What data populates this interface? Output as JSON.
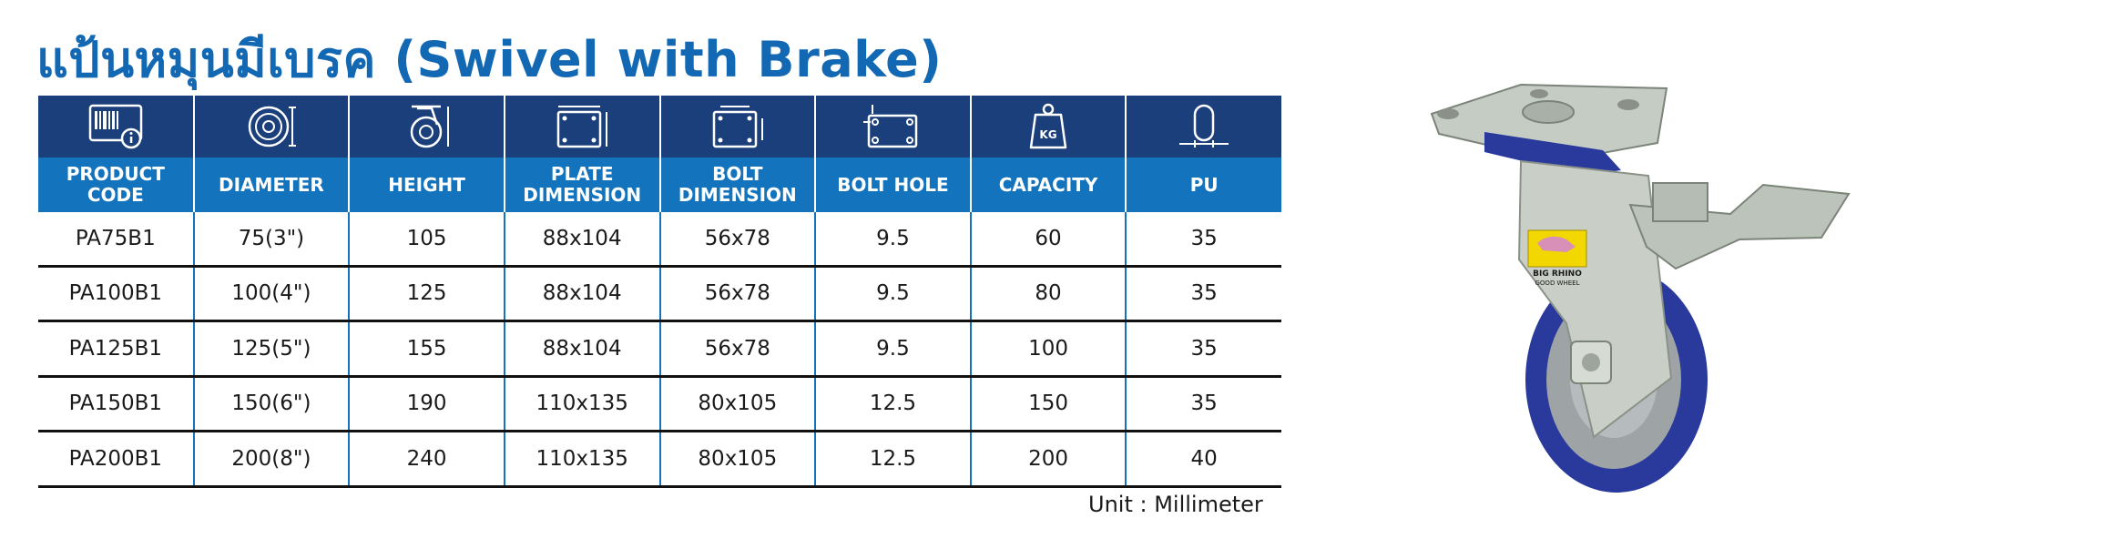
{
  "title": "แป้นหมุนมีเบรค (Swivel with Brake)",
  "table": {
    "icons": [
      {
        "name": "product-code-icon"
      },
      {
        "name": "diameter-icon"
      },
      {
        "name": "height-icon"
      },
      {
        "name": "plate-dimension-icon"
      },
      {
        "name": "bolt-dimension-icon"
      },
      {
        "name": "bolt-hole-icon"
      },
      {
        "name": "capacity-icon",
        "text": "KG"
      },
      {
        "name": "pu-icon"
      }
    ],
    "headers": [
      "PRODUCT\nCODE",
      "DIAMETER",
      "HEIGHT",
      "PLATE\nDIMENSION",
      "BOLT\nDIMENSION",
      "BOLT HOLE",
      "CAPACITY",
      "PU"
    ],
    "rows": [
      [
        "PA75B1",
        "75(3\")",
        "105",
        "88x104",
        "56x78",
        "9.5",
        "60",
        "35"
      ],
      [
        "PA100B1",
        "100(4\")",
        "125",
        "88x104",
        "56x78",
        "9.5",
        "80",
        "35"
      ],
      [
        "PA125B1",
        "125(5\")",
        "155",
        "88x104",
        "56x78",
        "9.5",
        "100",
        "35"
      ],
      [
        "PA150B1",
        "150(6\")",
        "190",
        "110x135",
        "80x105",
        "12.5",
        "150",
        "35"
      ],
      [
        "PA200B1",
        "200(8\")",
        "240",
        "110x135",
        "80x105",
        "12.5",
        "200",
        "40"
      ]
    ]
  },
  "unit": "Unit : Millimeter",
  "product_image": {
    "name": "swivel-caster-with-brake",
    "label_line1": "BIG RHINO",
    "label_line2": "GOOD WHEEL"
  },
  "colors": {
    "title": "#1268b3",
    "icon_row": "#1b3f7a",
    "header_row": "#1374bd",
    "wheel": "#2a3a9c",
    "metal": "#c5ccc4"
  }
}
